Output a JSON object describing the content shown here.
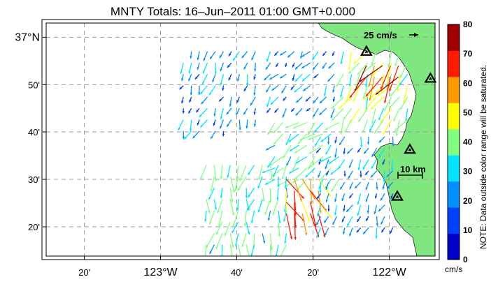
{
  "title": "MNTY Totals: 16–Jun–2011 01:00 GMT+0.000",
  "lon_ticks": [
    {
      "label": "20'",
      "lon": -123.333,
      "big": false
    },
    {
      "label": "123°W",
      "lon": -123.0,
      "big": true
    },
    {
      "label": "40'",
      "lon": -122.667,
      "big": false
    },
    {
      "label": "20'",
      "lon": -122.333,
      "big": false
    },
    {
      "label": "122°W",
      "lon": -122.0,
      "big": true
    }
  ],
  "lat_ticks": [
    {
      "label": "37°N",
      "lat": 37.0,
      "big": true
    },
    {
      "label": "50'",
      "lat": 36.833,
      "big": false
    },
    {
      "label": "40'",
      "lat": 36.667,
      "big": false
    },
    {
      "label": "30'",
      "lat": 36.5,
      "big": false
    },
    {
      "label": "20'",
      "lat": 36.333,
      "big": false
    }
  ],
  "scale_arrow_label": "25 cm/s",
  "scale_bar_label": "10 km",
  "colorbar": {
    "ticks": [
      "0",
      "10",
      "20",
      "30",
      "40",
      "50",
      "60",
      "70",
      "80"
    ],
    "unit": "cm/s",
    "note": "NOTE: Data outside color range will be saturated.",
    "colors": [
      "#0000c8",
      "#0040ff",
      "#0090ff",
      "#00e5ff",
      "#80ff80",
      "#ffff00",
      "#ff9900",
      "#ff1a00",
      "#a00000"
    ]
  },
  "colors": {
    "land": "#80e680",
    "grid": "#999999",
    "station": "#000000"
  },
  "stations": [
    {
      "name": "station-1",
      "lon": -122.1,
      "lat": 36.95
    },
    {
      "name": "station-2",
      "lon": -121.82,
      "lat": 36.855
    },
    {
      "name": "station-3",
      "lon": -121.91,
      "lat": 36.605
    },
    {
      "name": "station-4",
      "lon": -121.965,
      "lat": 36.44
    }
  ],
  "chart_data": {
    "type": "vector-field",
    "title": "MNTY Totals: 16–Jun–2011 01:00 GMT+0.000",
    "xlabel": "",
    "ylabel": "",
    "xlim": [
      -123.5,
      -121.8
    ],
    "ylim": [
      36.23,
      37.05
    ],
    "colorbar_range_cm_s": [
      0,
      80
    ],
    "clusters": [
      {
        "region": "north-west",
        "lon": [
          -122.9,
          -122.58
        ],
        "lat": [
          36.67,
          36.95
        ],
        "dir_deg": 200,
        "speed_cm_s": 22
      },
      {
        "region": "north-central",
        "lon": [
          -122.52,
          -122.22
        ],
        "lat": [
          36.72,
          36.95
        ],
        "dir_deg": 215,
        "speed_cm_s": 20
      },
      {
        "region": "north-east",
        "lon": [
          -122.2,
          -121.9
        ],
        "lat": [
          36.7,
          36.95
        ],
        "dir_deg": 210,
        "speed_cm_s": 40
      },
      {
        "region": "near-coast-fast",
        "lon": [
          -122.1,
          -121.95
        ],
        "lat": [
          36.83,
          36.9
        ],
        "dir_deg": 215,
        "speed_cm_s": 65
      },
      {
        "region": "central",
        "lon": [
          -122.5,
          -122.2
        ],
        "lat": [
          36.5,
          36.7
        ],
        "dir_deg": 225,
        "speed_cm_s": 35
      },
      {
        "region": "south-west",
        "lon": [
          -122.8,
          -122.45
        ],
        "lat": [
          36.27,
          36.55
        ],
        "dir_deg": 190,
        "speed_cm_s": 35
      },
      {
        "region": "south-central",
        "lon": [
          -122.45,
          -122.3
        ],
        "lat": [
          36.35,
          36.5
        ],
        "dir_deg": 160,
        "speed_cm_s": 60
      },
      {
        "region": "south-east",
        "lon": [
          -122.3,
          -121.97
        ],
        "lat": [
          36.3,
          36.65
        ],
        "dir_deg": 200,
        "speed_cm_s": 22
      }
    ]
  }
}
